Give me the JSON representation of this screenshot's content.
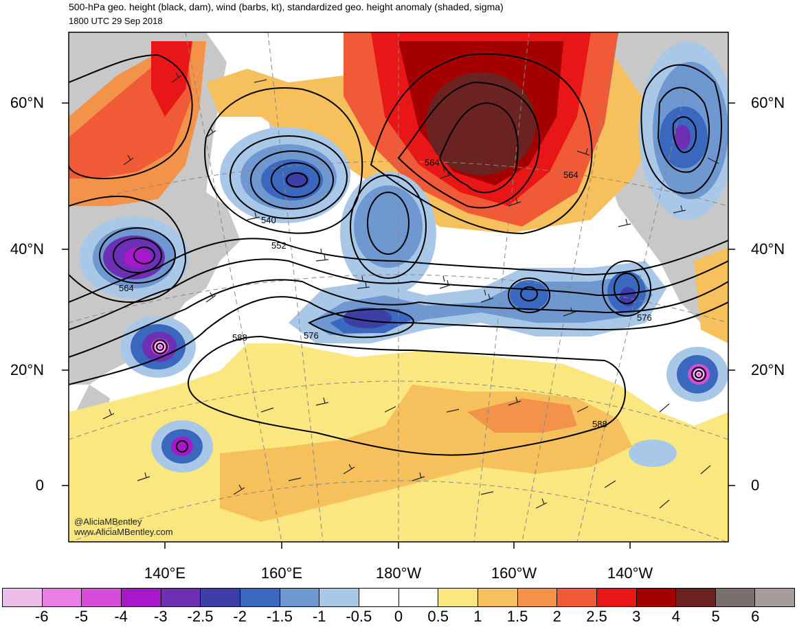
{
  "header": {
    "title": "500-hPa geo. height (black, dam), wind (barbs, kt), standardized geo. height anomaly (shaded, sigma)",
    "subtitle": "1800 UTC 29 Sep 2018"
  },
  "map": {
    "lat_labels": [
      "60°N",
      "40°N",
      "20°N",
      "0"
    ],
    "lon_labels": [
      "140°E",
      "160°E",
      "180°W",
      "160°W",
      "140°W"
    ],
    "contour_labels": [
      "540",
      "552",
      "564",
      "564",
      "564",
      "576",
      "576",
      "588",
      "588"
    ],
    "credits": [
      "@AliciaMBentley",
      "www.AliciaMBentley.com"
    ],
    "land_color": "#c8c8c8",
    "ocean_color": "#ffffff"
  },
  "colorbar": {
    "labels": [
      "-6",
      "-5",
      "-4",
      "-3",
      "-2.5",
      "-2",
      "-1.5",
      "-1",
      "-0.5",
      "0",
      "0.5",
      "1",
      "1.5",
      "2",
      "2.5",
      "3",
      "4",
      "5",
      "6"
    ],
    "colors": [
      "#ebbde8",
      "#e780e2",
      "#d84cd8",
      "#a817c9",
      "#6d2fb4",
      "#3d3fa6",
      "#3b68bf",
      "#6f97d0",
      "#a9c8e8",
      "#ffffff",
      "#ffffff",
      "#fbe780",
      "#f6c05c",
      "#f3934a",
      "#f05a36",
      "#e81616",
      "#a40000",
      "#6b2322",
      "#7a6f6d",
      "#a49d9b"
    ]
  }
}
